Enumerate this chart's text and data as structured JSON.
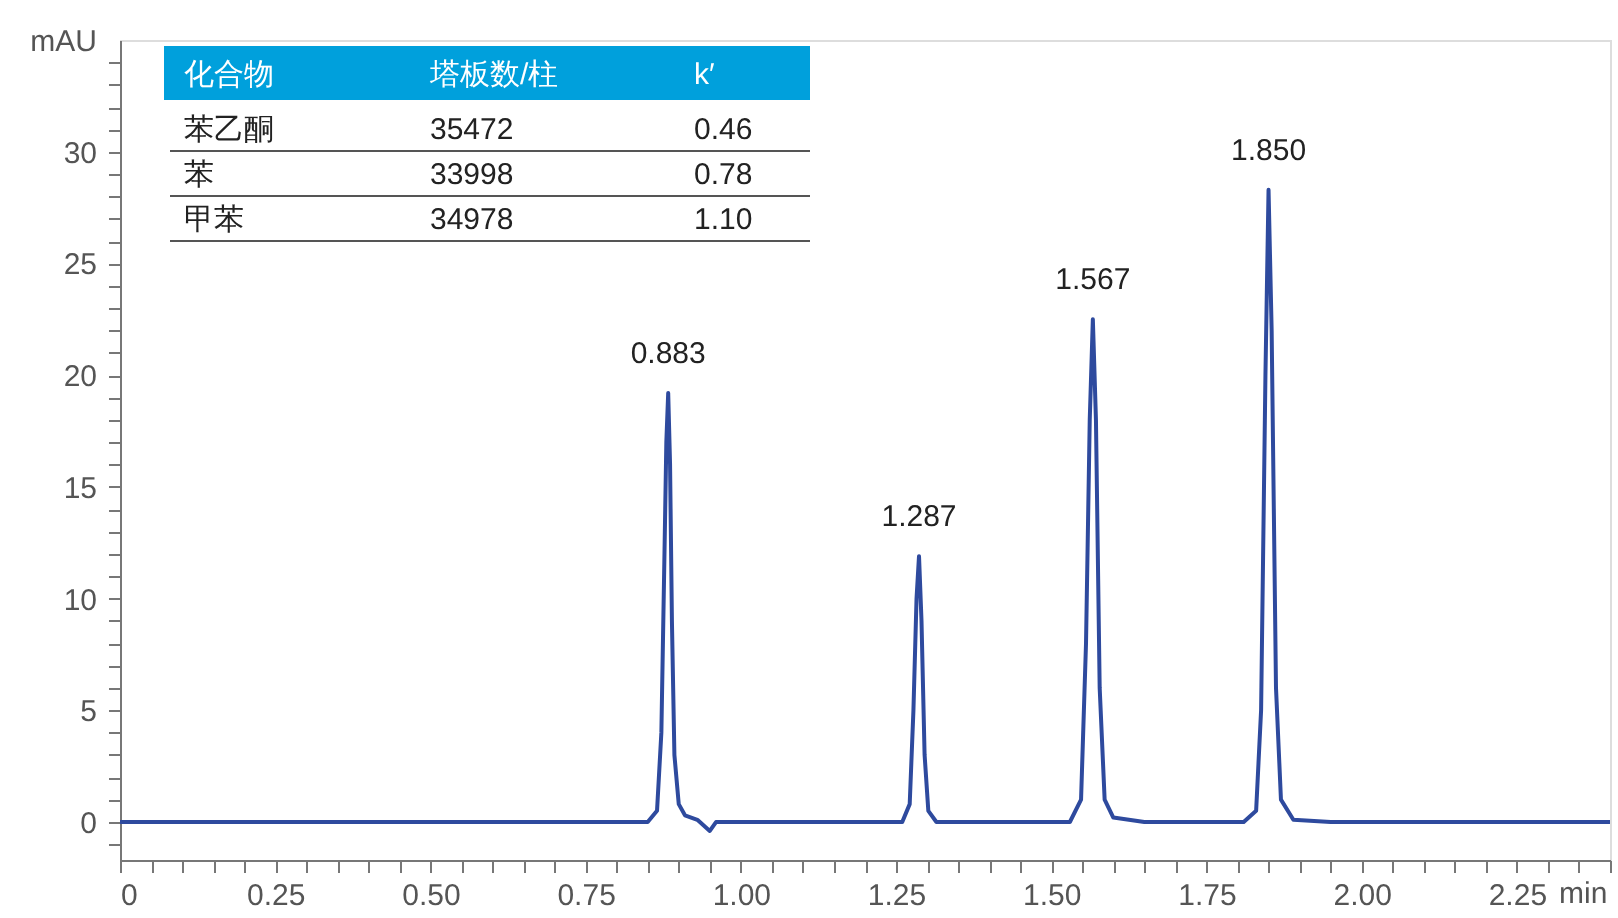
{
  "chart_data": {
    "type": "line",
    "xlabel": "min",
    "ylabel": "mAU",
    "x": [
      0,
      0.1,
      0.2,
      0.3,
      0.4,
      0.5,
      0.6,
      0.7,
      0.8,
      0.85,
      0.865,
      0.872,
      0.877,
      0.88,
      0.883,
      0.886,
      0.889,
      0.893,
      0.9,
      0.91,
      0.93,
      0.95,
      0.96,
      1.0,
      1.1,
      1.2,
      1.26,
      1.272,
      1.278,
      1.283,
      1.287,
      1.291,
      1.296,
      1.302,
      1.315,
      1.35,
      1.45,
      1.53,
      1.548,
      1.556,
      1.562,
      1.567,
      1.572,
      1.578,
      1.586,
      1.6,
      1.65,
      1.75,
      1.81,
      1.83,
      1.838,
      1.845,
      1.85,
      1.855,
      1.862,
      1.87,
      1.89,
      1.95,
      2.05,
      2.15,
      2.25,
      2.4
    ],
    "series": [
      {
        "color": "#2e4a9e",
        "values": [
          0,
          0,
          0,
          0,
          0,
          0,
          0,
          0,
          0,
          0,
          0.5,
          4,
          12,
          17,
          19.2,
          16,
          9,
          3,
          0.8,
          0.3,
          0.1,
          -0.4,
          0,
          0,
          0,
          0,
          0,
          0.8,
          5,
          10,
          11.9,
          9,
          3,
          0.5,
          0,
          0,
          0,
          0,
          1,
          8,
          18,
          22.5,
          18,
          6,
          1,
          0.2,
          0,
          0,
          0,
          0.5,
          5,
          20,
          28.3,
          22,
          6,
          1,
          0.1,
          0,
          0,
          0,
          0,
          0
        ]
      }
    ],
    "xlim": [
      0,
      2.4
    ],
    "ylim": [
      -1.7,
      35
    ],
    "xticks": [
      0,
      {
        "value": 0.05,
        "label": null
      },
      {
        "value": 0.1,
        "label": null
      },
      {
        "value": 0.15,
        "label": null
      },
      {
        "value": 0.2,
        "label": null
      },
      {
        "value": 0.25,
        "label": "0.25"
      },
      {
        "value": 0.3,
        "label": null
      },
      {
        "value": 0.35,
        "label": null
      },
      {
        "value": 0.4,
        "label": null
      },
      {
        "value": 0.45,
        "label": null
      },
      {
        "value": 0.5,
        "label": "0.50"
      },
      {
        "value": 0.55,
        "label": null
      },
      {
        "value": 0.6,
        "label": null
      },
      {
        "value": 0.65,
        "label": null
      },
      {
        "value": 0.7,
        "label": null
      },
      {
        "value": 0.75,
        "label": "0.75"
      },
      {
        "value": 0.8,
        "label": null
      },
      {
        "value": 0.85,
        "label": null
      },
      {
        "value": 0.9,
        "label": null
      },
      {
        "value": 0.95,
        "label": null
      },
      {
        "value": 1,
        "label": "1.00"
      },
      {
        "value": 1.05,
        "label": null
      },
      {
        "value": 1.1,
        "label": null
      },
      {
        "value": 1.15,
        "label": null
      },
      {
        "value": 1.2,
        "label": null
      },
      {
        "value": 1.25,
        "label": "1.25"
      },
      {
        "value": 1.3,
        "label": null
      },
      {
        "value": 1.35,
        "label": null
      },
      {
        "value": 1.4,
        "label": null
      },
      {
        "value": 1.45,
        "label": null
      },
      {
        "value": 1.5,
        "label": "1.50"
      },
      {
        "value": 1.55,
        "label": null
      },
      {
        "value": 1.6,
        "label": null
      },
      {
        "value": 1.65,
        "label": null
      },
      {
        "value": 1.7,
        "label": null
      },
      {
        "value": 1.75,
        "label": "1.75"
      },
      {
        "value": 1.8,
        "label": null
      },
      {
        "value": 1.85,
        "label": null
      },
      {
        "value": 1.9,
        "label": null
      },
      {
        "value": 1.95,
        "label": null
      },
      {
        "value": 2,
        "label": "2.00"
      },
      {
        "value": 2.05,
        "label": null
      },
      {
        "value": 2.1,
        "label": null
      },
      {
        "value": 2.15,
        "label": null
      },
      {
        "value": 2.2,
        "label": null
      },
      {
        "value": 2.25,
        "label": "2.25"
      },
      {
        "value": 2.3,
        "label": null
      },
      {
        "value": 2.35,
        "label": null
      },
      {
        "value": 2.4,
        "label": null
      }
    ],
    "yticks": [
      {
        "value": -1,
        "label": null
      },
      0,
      {
        "value": 1,
        "label": null
      },
      {
        "value": 2,
        "label": null
      },
      {
        "value": 3,
        "label": null
      },
      {
        "value": 4,
        "label": null
      },
      5,
      {
        "value": 6,
        "label": null
      },
      {
        "value": 7,
        "label": null
      },
      {
        "value": 8,
        "label": null
      },
      {
        "value": 9,
        "label": null
      },
      10,
      {
        "value": 11,
        "label": null
      },
      {
        "value": 12,
        "label": null
      },
      {
        "value": 13,
        "label": null
      },
      {
        "value": 14,
        "label": null
      },
      15,
      {
        "value": 16,
        "label": null
      },
      {
        "value": 17,
        "label": null
      },
      {
        "value": 18,
        "label": null
      },
      {
        "value": 19,
        "label": null
      },
      20,
      {
        "value": 21,
        "label": null
      },
      {
        "value": 22,
        "label": null
      },
      {
        "value": 23,
        "label": null
      },
      {
        "value": 24,
        "label": null
      },
      25,
      {
        "value": 26,
        "label": null
      },
      {
        "value": 27,
        "label": null
      },
      {
        "value": 28,
        "label": null
      },
      {
        "value": 29,
        "label": null
      },
      30,
      {
        "value": 31,
        "label": null
      },
      {
        "value": 32,
        "label": null
      },
      {
        "value": 33,
        "label": null
      },
      {
        "value": 34,
        "label": null
      }
    ],
    "grid": false,
    "marker": "none",
    "line_style": "solid",
    "annotations": [
      {
        "text": "0.883",
        "x": 0.883,
        "y": 19.2
      },
      {
        "text": "1.287",
        "x": 1.287,
        "y": 11.9
      },
      {
        "text": "1.567",
        "x": 1.567,
        "y": 22.5
      },
      {
        "text": "1.850",
        "x": 1.85,
        "y": 28.3
      },
      "化合物",
      "塔板数/柱",
      "k′",
      "苯乙酮",
      "35472",
      "0.46",
      "苯",
      "33998",
      "0.78",
      "甲苯",
      "34978",
      "1.10"
    ]
  }
}
